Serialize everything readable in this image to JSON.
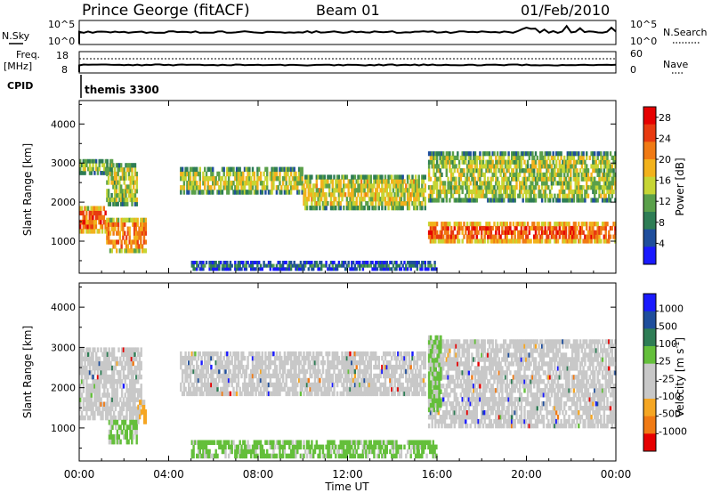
{
  "header": {
    "station": "Prince George (fitACF)",
    "beam": "Beam 01",
    "date": "01/Feb/2010"
  },
  "top_panels": {
    "nsky_label": "N.Sky",
    "nsearch_label": "N.Search",
    "noise_tick_top": "10^5",
    "noise_tick_bottom": "10^0",
    "freq_label_line1": "Freq.",
    "freq_label_line2": "[MHz]",
    "freq_tick_top": "18",
    "freq_tick_bottom": "8",
    "nave_label": "Nave",
    "nave_tick_top": "60",
    "nave_tick_bottom": "0",
    "cpid_label": "CPID",
    "cpid_value": "themis 3300"
  },
  "colors": {
    "power_scale": [
      "#1a1aff",
      "#1f4e9c",
      "#2e7d55",
      "#5aa04a",
      "#c6d534",
      "#f2b21c",
      "#f07a14",
      "#e83a10",
      "#e60000"
    ],
    "velocity_scale": [
      "#1a1aff",
      "#1f4e9c",
      "#2e7d55",
      "#64bf3b",
      "#c8c8c8",
      "#c8c8c8",
      "#f5a623",
      "#f07a14",
      "#e60000"
    ]
  },
  "chart_data": [
    {
      "type": "heatmap",
      "name_key": "power",
      "xlabel": "",
      "ylabel": "Slant Range [km]",
      "x_ticks": [
        "00:00",
        "04:00",
        "08:00",
        "12:00",
        "16:00",
        "20:00",
        "00:00"
      ],
      "x_range_hours": [
        0,
        24
      ],
      "y_ticks": [
        1000,
        2000,
        3000,
        4000
      ],
      "ylim": [
        180,
        4600
      ],
      "colorbar": {
        "label": "Power [dB]",
        "tick_labels": [
          "4",
          "8",
          "12",
          "16",
          "20",
          "24",
          "28"
        ],
        "range": [
          0,
          30
        ]
      },
      "bands": [
        {
          "t0": 0.0,
          "t1": 1.2,
          "r0": 1200,
          "r1": 1900,
          "level": 24
        },
        {
          "t0": 0.0,
          "t1": 1.5,
          "r0": 2700,
          "r1": 3100,
          "level": 14
        },
        {
          "t0": 1.2,
          "t1": 2.6,
          "r0": 1900,
          "r1": 3000,
          "level": 14
        },
        {
          "t0": 1.2,
          "t1": 3.0,
          "r0": 700,
          "r1": 1600,
          "level": 22
        },
        {
          "t0": 4.5,
          "t1": 10.0,
          "r0": 2200,
          "r1": 2900,
          "level": 15
        },
        {
          "t0": 10.0,
          "t1": 15.5,
          "r0": 1800,
          "r1": 2700,
          "level": 16
        },
        {
          "t0": 15.6,
          "t1": 24.0,
          "r0": 950,
          "r1": 1500,
          "level": 25
        },
        {
          "t0": 15.6,
          "t1": 24.0,
          "r0": 2000,
          "r1": 3300,
          "level": 14
        },
        {
          "t0": 5.0,
          "t1": 16.0,
          "r0": 250,
          "r1": 500,
          "level": 8
        }
      ]
    },
    {
      "type": "heatmap",
      "name_key": "velocity",
      "xlabel": "Time UT",
      "ylabel": "Slant Range [km]",
      "x_ticks": [
        "00:00",
        "04:00",
        "08:00",
        "12:00",
        "16:00",
        "20:00",
        "00:00"
      ],
      "x_range_hours": [
        0,
        24
      ],
      "y_ticks": [
        1000,
        2000,
        3000,
        4000
      ],
      "ylim": [
        180,
        4600
      ],
      "colorbar": {
        "label": "Velocity [m s",
        "label_sup": "-1",
        "label_end": "]",
        "tick_labels": [
          "1000",
          "500",
          "100",
          "25",
          "-25",
          "-100",
          "-500",
          "-1000"
        ]
      },
      "bands": [
        {
          "t0": 0.0,
          "t1": 2.8,
          "r0": 1200,
          "r1": 3000,
          "level": "gray"
        },
        {
          "t0": 1.3,
          "t1": 2.6,
          "r0": 600,
          "r1": 1200,
          "level": "green"
        },
        {
          "t0": 2.6,
          "t1": 3.0,
          "r0": 1100,
          "r1": 1700,
          "level": "orange"
        },
        {
          "t0": 4.5,
          "t1": 15.5,
          "r0": 1800,
          "r1": 2900,
          "level": "gray"
        },
        {
          "t0": 15.6,
          "t1": 24.0,
          "r0": 1000,
          "r1": 3200,
          "level": "gray"
        },
        {
          "t0": 15.6,
          "t1": 16.2,
          "r0": 1400,
          "r1": 3300,
          "level": "green"
        },
        {
          "t0": 5.0,
          "t1": 16.0,
          "r0": 250,
          "r1": 700,
          "level": "green"
        }
      ]
    }
  ]
}
